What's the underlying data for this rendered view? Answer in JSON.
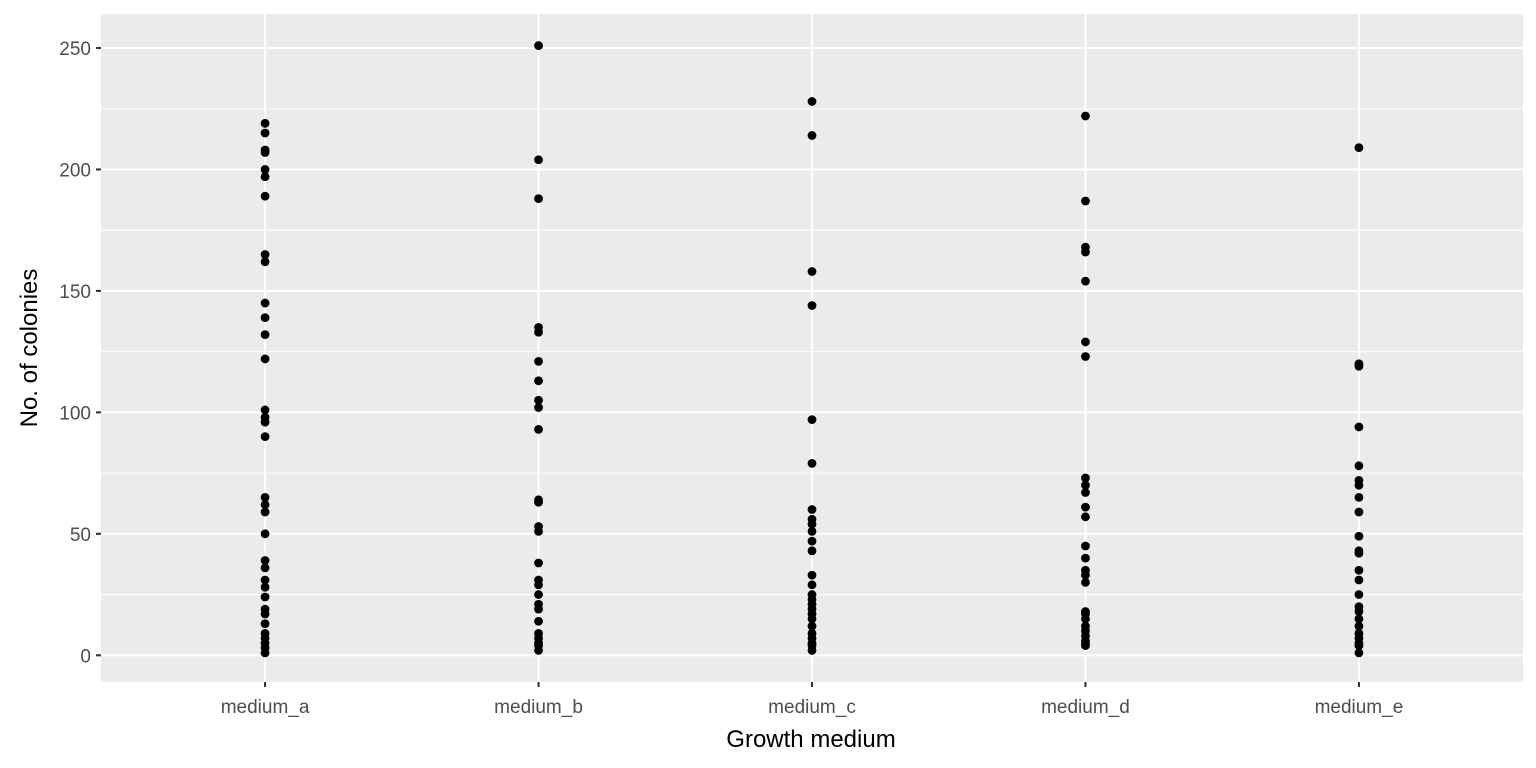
{
  "chart_data": {
    "type": "scatter",
    "title": "",
    "xlabel": "Growth medium",
    "ylabel": "No. of colonies",
    "categories": [
      "medium_a",
      "medium_b",
      "medium_c",
      "medium_d",
      "medium_e"
    ],
    "ylim": [
      -11,
      264
    ],
    "y_ticks": [
      0,
      50,
      100,
      150,
      200,
      250
    ],
    "grid": true,
    "legend": "none",
    "point_color": "#000000",
    "panel_color": "#EBEBEB",
    "series": [
      {
        "category": "medium_a",
        "values": [
          219,
          215,
          208,
          207,
          200,
          197,
          189,
          165,
          162,
          145,
          139,
          132,
          122,
          101,
          98,
          96,
          90,
          65,
          62,
          59,
          50,
          39,
          36,
          31,
          28,
          24,
          19,
          17,
          13,
          9,
          7,
          5,
          3,
          1
        ]
      },
      {
        "category": "medium_b",
        "values": [
          251,
          204,
          188,
          135,
          133,
          121,
          113,
          105,
          102,
          93,
          64,
          63,
          53,
          51,
          38,
          31,
          29,
          25,
          21,
          19,
          14,
          9,
          7,
          5,
          4,
          2
        ]
      },
      {
        "category": "medium_c",
        "values": [
          228,
          214,
          158,
          144,
          97,
          79,
          60,
          56,
          54,
          51,
          47,
          43,
          33,
          29,
          25,
          23,
          21,
          19,
          17,
          15,
          12,
          9,
          7,
          5,
          4,
          2
        ]
      },
      {
        "category": "medium_d",
        "values": [
          222,
          187,
          168,
          166,
          154,
          129,
          123,
          73,
          70,
          67,
          61,
          57,
          45,
          40,
          35,
          33,
          30,
          18,
          17,
          15,
          12,
          10,
          8,
          6,
          5,
          4
        ]
      },
      {
        "category": "medium_e",
        "values": [
          209,
          120,
          119,
          94,
          78,
          72,
          70,
          65,
          59,
          49,
          43,
          42,
          35,
          31,
          25,
          20,
          18,
          15,
          12,
          9,
          7,
          5,
          4,
          1
        ]
      }
    ]
  }
}
